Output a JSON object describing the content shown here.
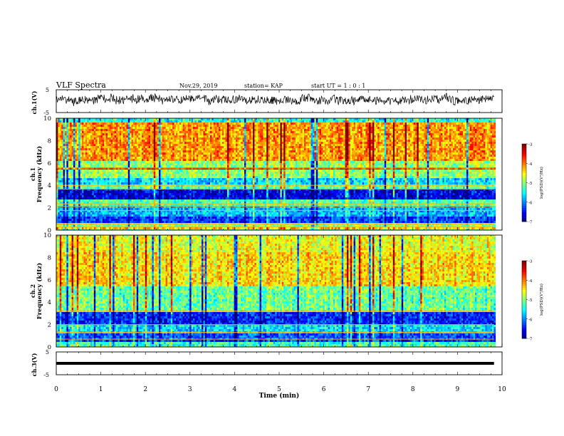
{
  "header": {
    "title": "VLF Spectra",
    "date": "Nov.29, 2019",
    "station": "station= KAP",
    "start": "start  UT =   1 : 0  : 1"
  },
  "chart_data": [
    {
      "type": "line",
      "name": "ch1-waveform",
      "ylabel": "ch.1(V)",
      "ylim": [
        -5,
        5
      ],
      "yticks": [
        "5",
        "-5"
      ],
      "xlim": [
        0,
        10
      ],
      "trace_range_min": [
        0,
        9.82
      ],
      "trace_mean_v": 0.5,
      "trace_swing_v": 3.5
    },
    {
      "type": "heatmap",
      "name": "ch1-spectrogram",
      "ylabel": "ch.1",
      "ylabel2": "Frequency  (kHz)",
      "ylim": [
        0,
        10
      ],
      "yticks": [
        "0",
        "2",
        "4",
        "6",
        "8",
        "10"
      ],
      "xlim": [
        0,
        10
      ],
      "data_range_min": [
        0,
        9.82
      ],
      "colorbar": {
        "label": "log(PSD)(V²/Hz)",
        "range": [
          -7,
          -3
        ],
        "ticks": [
          "-3",
          "-4",
          "-5",
          "-6",
          "-7"
        ]
      },
      "bands_khz": [
        {
          "from": 9.7,
          "to": 10.0,
          "level": -5.4
        },
        {
          "from": 6.2,
          "to": 9.7,
          "level": -4.1
        },
        {
          "from": 5.45,
          "to": 5.65,
          "level": -3.6
        },
        {
          "from": 4.6,
          "to": 6.2,
          "level": -4.9
        },
        {
          "from": 4.1,
          "to": 4.6,
          "level": -5.6
        },
        {
          "from": 3.7,
          "to": 4.1,
          "level": -5.1
        },
        {
          "from": 2.8,
          "to": 3.7,
          "level": -6.6
        },
        {
          "from": 2.2,
          "to": 2.8,
          "level": -5.2
        },
        {
          "from": 1.2,
          "to": 2.2,
          "level": -5.8
        },
        {
          "from": 0.6,
          "to": 1.2,
          "level": -6.3
        },
        {
          "from": 0.2,
          "to": 0.6,
          "level": -5.0
        },
        {
          "from": 0.0,
          "to": 0.2,
          "level": -4.3
        }
      ],
      "emission_lines_khz": [
        5.55,
        4.0,
        3.65,
        2.35,
        2.1,
        1.75,
        0.55,
        0.3
      ]
    },
    {
      "type": "heatmap",
      "name": "ch2-spectrogram",
      "ylabel": "ch.2",
      "ylabel2": "Frequency  (kHz)",
      "ylim": [
        0,
        10
      ],
      "yticks": [
        "0",
        "2",
        "4",
        "6",
        "8",
        "10"
      ],
      "xlim": [
        0,
        10
      ],
      "data_range_min": [
        0,
        9.82
      ],
      "colorbar": {
        "label": "log(PSD)(V²/Hz)",
        "range": [
          -7,
          -3
        ],
        "ticks": [
          "-3",
          "-4",
          "-5",
          "-6",
          "-7"
        ]
      },
      "bands_khz": [
        {
          "from": 8.5,
          "to": 10.0,
          "level": -4.6
        },
        {
          "from": 5.5,
          "to": 8.5,
          "level": -4.4
        },
        {
          "from": 3.2,
          "to": 5.5,
          "level": -5.1
        },
        {
          "from": 2.0,
          "to": 3.2,
          "level": -6.4
        },
        {
          "from": 1.2,
          "to": 2.0,
          "level": -5.6
        },
        {
          "from": 0.5,
          "to": 1.2,
          "level": -6.2
        },
        {
          "from": 0.0,
          "to": 0.5,
          "level": -5.3
        }
      ],
      "emission_lines_khz": [
        3.2,
        2.0,
        1.3,
        0.7
      ]
    },
    {
      "type": "line",
      "name": "ch3-signal",
      "ylabel": "ch.3(V)",
      "ylim": [
        -5,
        5
      ],
      "yticks": [
        "5",
        "-5"
      ],
      "xlim": [
        0,
        10
      ],
      "xlabel": "Time  (min)",
      "xticks": [
        "0",
        "1",
        "2",
        "3",
        "4",
        "5",
        "6",
        "7",
        "8",
        "9",
        "10"
      ],
      "trace_range_min": [
        0,
        9.82
      ],
      "trace_value_v": 0.0
    }
  ]
}
